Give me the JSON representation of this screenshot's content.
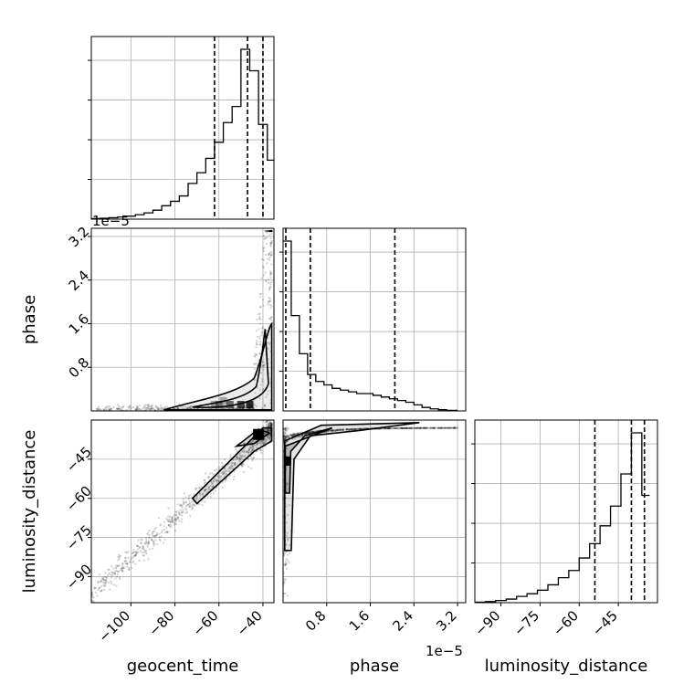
{
  "chart_data": {
    "type": "corner",
    "parameters": [
      "geocent_time",
      "phase",
      "luminosity_distance"
    ],
    "offset_labels": {
      "time_axis": "1e−5",
      "phase_axis": "1e−5"
    },
    "axes": {
      "geocent_time": {
        "range": [
          -118,
          -35
        ],
        "ticks": [
          -100,
          -80,
          -60,
          -40
        ],
        "tick_labels": [
          "−100",
          "−80",
          "−60",
          "−40"
        ]
      },
      "phase": {
        "range": [
          0,
          3.35
        ],
        "ticks": [
          0.8,
          1.6,
          2.4,
          3.2
        ],
        "tick_labels": [
          "0.8",
          "1.6",
          "2.4",
          "3.2"
        ]
      },
      "luminosity_distance": {
        "range": [
          -100,
          -30
        ],
        "ticks": [
          -90,
          -75,
          -60,
          -45
        ],
        "tick_labels": [
          "−90",
          "−75",
          "−60",
          "−45"
        ]
      }
    },
    "histograms": [
      {
        "parameter": "geocent_time",
        "bin_edges": [
          -118,
          -114,
          -110,
          -106,
          -102,
          -98,
          -94,
          -90,
          -86,
          -82,
          -78,
          -74,
          -70,
          -66,
          -62,
          -58,
          -54,
          -50,
          -46,
          -42,
          -38,
          -35
        ],
        "counts": [
          0.003,
          0.005,
          0.008,
          0.012,
          0.017,
          0.025,
          0.035,
          0.05,
          0.075,
          0.1,
          0.13,
          0.2,
          0.26,
          0.34,
          0.43,
          0.54,
          0.63,
          0.95,
          0.83,
          0.53,
          0.33
        ],
        "quantiles": [
          -62,
          -47,
          -40
        ]
      },
      {
        "parameter": "phase",
        "bin_edges": [
          0,
          0.15,
          0.3,
          0.45,
          0.6,
          0.75,
          0.9,
          1.05,
          1.2,
          1.35,
          1.5,
          1.65,
          1.8,
          1.95,
          2.1,
          2.25,
          2.4,
          2.55,
          2.7,
          2.85,
          3.0,
          3.2
        ],
        "counts": [
          0.98,
          0.55,
          0.33,
          0.21,
          0.17,
          0.15,
          0.13,
          0.12,
          0.11,
          0.1,
          0.1,
          0.09,
          0.08,
          0.07,
          0.06,
          0.05,
          0.035,
          0.02,
          0.012,
          0.007,
          0.003
        ],
        "quantiles": [
          0.05,
          0.5,
          2.05
        ]
      },
      {
        "parameter": "luminosity_distance",
        "bin_edges": [
          -100,
          -96,
          -92,
          -88,
          -84,
          -80,
          -76,
          -72,
          -68,
          -64,
          -60,
          -56,
          -52,
          -48,
          -44,
          -40,
          -36,
          -33
        ],
        "counts": [
          0.003,
          0.006,
          0.012,
          0.02,
          0.035,
          0.05,
          0.07,
          0.1,
          0.14,
          0.18,
          0.25,
          0.33,
          0.43,
          0.54,
          0.72,
          0.95,
          0.6
        ],
        "quantiles": [
          -54,
          -40,
          -35
        ]
      }
    ]
  }
}
